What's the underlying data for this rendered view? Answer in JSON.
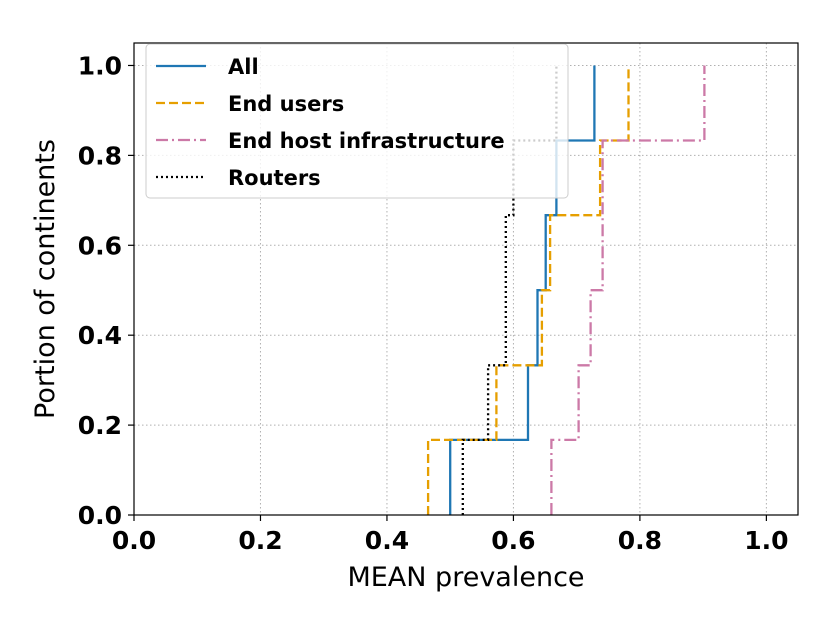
{
  "chart_data": {
    "type": "line",
    "step": true,
    "title": "",
    "xlabel": "MEAN prevalence",
    "ylabel": "Portion of continents",
    "xlim": [
      0.0,
      1.05
    ],
    "ylim": [
      0.0,
      1.05
    ],
    "xticks": [
      "0.0",
      "0.2",
      "0.4",
      "0.6",
      "0.8",
      "1.0"
    ],
    "yticks": [
      "0.0",
      "0.2",
      "0.4",
      "0.6",
      "0.8",
      "1.0"
    ],
    "grid": true,
    "legend_position": "top-left",
    "series": [
      {
        "name": "All",
        "color": "#1f77b4",
        "dash": "solid",
        "x": [
          0.5,
          0.5,
          0.623,
          0.623,
          0.638,
          0.638,
          0.651,
          0.651,
          0.668,
          0.668,
          0.728,
          0.728
        ],
        "y": [
          0.0,
          0.167,
          0.167,
          0.333,
          0.333,
          0.5,
          0.5,
          0.667,
          0.667,
          0.833,
          0.833,
          1.0
        ]
      },
      {
        "name": "End users",
        "color": "#e69f00",
        "dash": "dashed",
        "x": [
          0.465,
          0.465,
          0.573,
          0.573,
          0.645,
          0.645,
          0.658,
          0.658,
          0.737,
          0.737,
          0.782,
          0.782
        ],
        "y": [
          0.0,
          0.167,
          0.167,
          0.333,
          0.333,
          0.5,
          0.5,
          0.667,
          0.667,
          0.833,
          0.833,
          1.0
        ]
      },
      {
        "name": "End host infrastructure",
        "color": "#cc79a7",
        "dash": "dashdot",
        "x": [
          0.66,
          0.66,
          0.703,
          0.703,
          0.722,
          0.722,
          0.741,
          0.741,
          0.741,
          0.741,
          0.902,
          0.902
        ],
        "y": [
          0.0,
          0.167,
          0.167,
          0.333,
          0.333,
          0.5,
          0.5,
          0.667,
          0.667,
          0.833,
          0.833,
          1.0
        ]
      },
      {
        "name": "Routers",
        "color": "#000000",
        "dash": "dotted",
        "x": [
          0.52,
          0.52,
          0.56,
          0.56,
          0.588,
          0.588,
          0.588,
          0.588,
          0.6,
          0.6,
          0.668,
          0.668
        ],
        "y": [
          0.0,
          0.167,
          0.167,
          0.333,
          0.333,
          0.5,
          0.5,
          0.667,
          0.667,
          0.833,
          0.833,
          1.0
        ]
      }
    ]
  }
}
